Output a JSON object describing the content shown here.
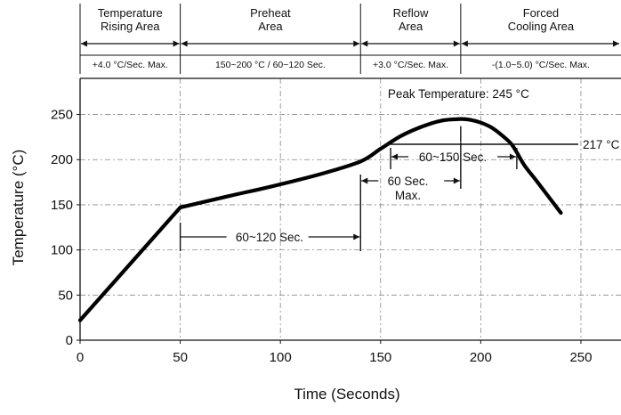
{
  "chart_data": {
    "type": "line",
    "title": "",
    "xlabel": "Time (Seconds)",
    "ylabel": "Temperature (°C)",
    "xlim": [
      0,
      270
    ],
    "ylim": [
      0,
      290
    ],
    "x_ticks": [
      "0",
      "50",
      "100",
      "150",
      "200",
      "250"
    ],
    "y_ticks": [
      "0",
      "50",
      "100",
      "150",
      "200",
      "250"
    ],
    "grid": true,
    "series": [
      {
        "x": [
          0,
          50,
          75,
          95,
          120,
          140,
          150,
          160,
          170,
          180,
          190,
          195,
          200,
          205,
          210,
          215,
          218,
          222,
          228,
          240
        ],
        "y": [
          22,
          147,
          160,
          170,
          184,
          198,
          212,
          226,
          236,
          243,
          245,
          244,
          241,
          236,
          228,
          218,
          208,
          193,
          176,
          141
        ]
      }
    ],
    "zones": [
      {
        "name": "Temperature\nRising Area",
        "rate": "+4.0 °C/Sec. Max.",
        "x_start": 0,
        "x_end": 50
      },
      {
        "name": "Preheat\nArea",
        "rate": "150~200 °C / 60~120 Sec.",
        "x_start": 50,
        "x_end": 140
      },
      {
        "name": "Reflow\nArea",
        "rate": "+3.0 °C/Sec. Max.",
        "x_start": 140,
        "x_end": 190
      },
      {
        "name": "Forced\nCooling Area",
        "rate": "-(1.0~5.0) °C/Sec. Max.",
        "x_start": 190,
        "x_end": 270
      }
    ],
    "annotations": {
      "peak": {
        "label": "Peak Temperature: 245 °C",
        "x": 190,
        "y": 245
      },
      "liquidus": {
        "label": "217 °C",
        "y": 217
      },
      "preheat_span": {
        "label": "60~120 Sec.",
        "x_start": 50,
        "x_end": 140
      },
      "reflow_time": {
        "label": "60~150 Sec.",
        "x_start": 155,
        "x_end": 218
      },
      "peak_time": {
        "label": "60 Sec.\nMax.",
        "x_start": 140,
        "x_end": 190
      }
    }
  }
}
